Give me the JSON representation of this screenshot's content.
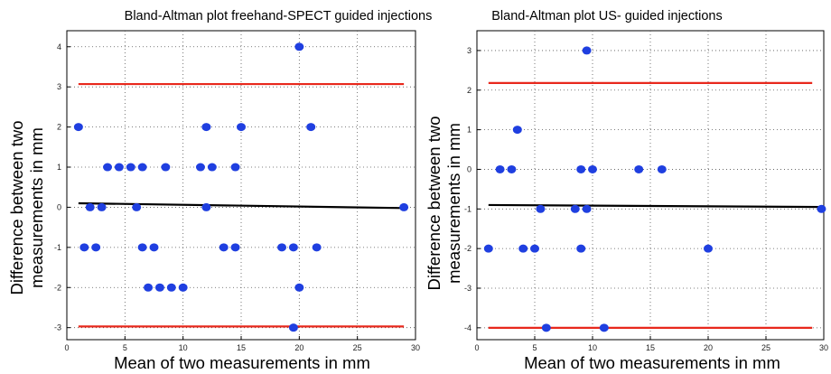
{
  "chart_data": [
    {
      "type": "scatter",
      "title": "Bland-Altman plot freehand-SPECT guided injections",
      "xlabel": "Mean of two measurements in mm",
      "ylabel_lines": [
        "Difference between two",
        "measurements in mm"
      ],
      "xlim": [
        0,
        30
      ],
      "ylim": [
        -3.3,
        4.4
      ],
      "xticks": [
        "0",
        "5",
        "10",
        "15",
        "20",
        "25",
        "30"
      ],
      "yticks": [
        "-3",
        "-2",
        "-1",
        "0",
        "1",
        "2",
        "3",
        "4"
      ],
      "grid": true,
      "point_color": "#1f3fe0",
      "limit_color": "#e8281c",
      "mean_color": "#000000",
      "limits_of_agreement": [
        3.07,
        -2.97
      ],
      "mean_difference_line": [
        [
          1,
          0.1
        ],
        [
          29,
          -0.02
        ]
      ],
      "points": [
        [
          1,
          2
        ],
        [
          1.5,
          -1
        ],
        [
          2,
          0
        ],
        [
          2.5,
          -1
        ],
        [
          3,
          0
        ],
        [
          3.5,
          1
        ],
        [
          4.5,
          1
        ],
        [
          5.5,
          1
        ],
        [
          6,
          0
        ],
        [
          6.5,
          1
        ],
        [
          6.5,
          -1
        ],
        [
          7,
          -2
        ],
        [
          7.5,
          -1
        ],
        [
          8,
          -2
        ],
        [
          8.5,
          1
        ],
        [
          9,
          -2
        ],
        [
          10,
          -2
        ],
        [
          11.5,
          1
        ],
        [
          12,
          2
        ],
        [
          12,
          0
        ],
        [
          12.5,
          1
        ],
        [
          13.5,
          -1
        ],
        [
          14.5,
          1
        ],
        [
          14.5,
          -1
        ],
        [
          15,
          2
        ],
        [
          18.5,
          -1
        ],
        [
          19.5,
          -3
        ],
        [
          19.5,
          -1
        ],
        [
          20,
          -2
        ],
        [
          20,
          4
        ],
        [
          21,
          2
        ],
        [
          21.5,
          -1
        ],
        [
          29,
          0
        ]
      ]
    },
    {
      "type": "scatter",
      "title": "Bland-Altman plot US- guided injections",
      "xlabel": "Mean of two measurements in mm",
      "ylabel_lines": [
        "Difference between two",
        "measurements in mm"
      ],
      "xlim": [
        0,
        30
      ],
      "ylim": [
        -4.3,
        3.5
      ],
      "xticks": [
        "0",
        "5",
        "10",
        "15",
        "20",
        "25",
        "30"
      ],
      "yticks": [
        "-4",
        "-3",
        "-2",
        "-1",
        "0",
        "1",
        "2",
        "3"
      ],
      "grid": true,
      "point_color": "#1f3fe0",
      "limit_color": "#e8281c",
      "mean_color": "#000000",
      "limits_of_agreement": [
        2.18,
        -4.0
      ],
      "mean_difference_line": [
        [
          1,
          -0.9
        ],
        [
          29.8,
          -0.95
        ]
      ],
      "points": [
        [
          1,
          -2
        ],
        [
          2,
          0
        ],
        [
          3,
          0
        ],
        [
          3.5,
          1
        ],
        [
          4,
          -2
        ],
        [
          5,
          -2
        ],
        [
          5.5,
          -1
        ],
        [
          6,
          -4
        ],
        [
          8.5,
          -1
        ],
        [
          9,
          -2
        ],
        [
          9,
          0
        ],
        [
          9.5,
          -1
        ],
        [
          9.5,
          3
        ],
        [
          10,
          0
        ],
        [
          11,
          -4
        ],
        [
          14,
          0
        ],
        [
          16,
          0
        ],
        [
          20,
          -2
        ],
        [
          29.8,
          -1
        ]
      ]
    }
  ]
}
